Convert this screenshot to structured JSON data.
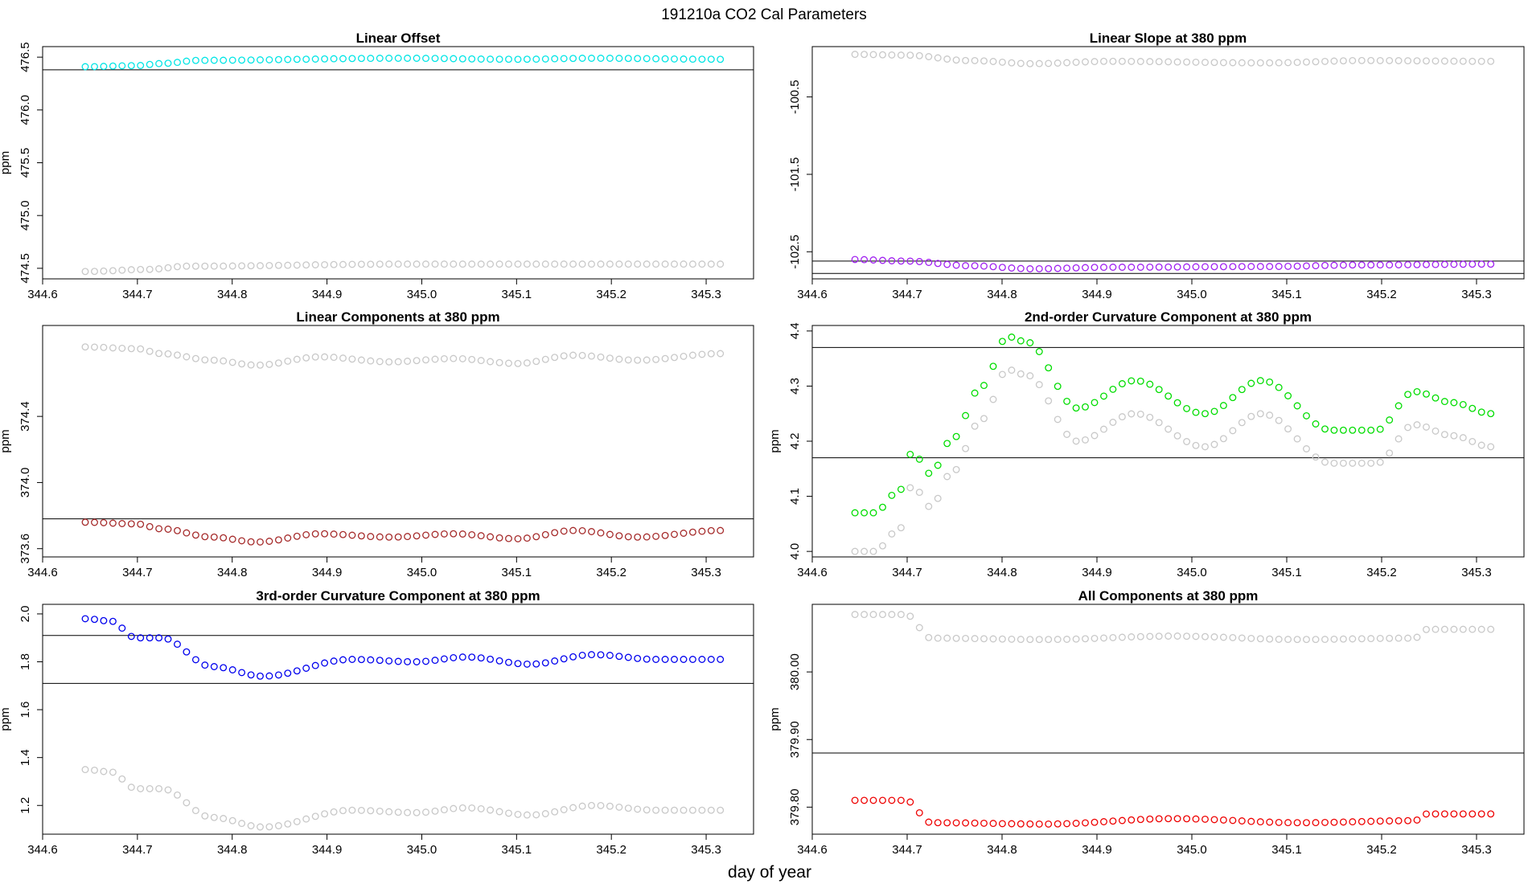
{
  "title": "191210a    CO2 Cal Parameters",
  "xlabel": "day of year",
  "chart_data": [
    {
      "type": "scatter",
      "title": "Linear Offset",
      "ylabel": "ppm",
      "xlim": [
        344.6,
        345.35
      ],
      "ylim": [
        474.4,
        476.6
      ],
      "xticks": [
        344.6,
        344.7,
        344.8,
        344.9,
        345.0,
        345.1,
        345.2,
        345.3
      ],
      "xtick_labels": [
        "344.6",
        "344.7",
        "344.8",
        "344.9",
        "345.0",
        "345.1",
        "345.2",
        "345.3"
      ],
      "yticks": [
        474.5,
        475.0,
        475.5,
        476.0,
        476.5
      ],
      "ytick_labels": [
        "474.5",
        "475.0",
        "475.5",
        "476.0",
        "476.5"
      ],
      "hlines": [
        476.38
      ],
      "series": [
        {
          "color": "#00e5e5",
          "x0": 344.645,
          "x1": 345.315,
          "keys": [
            [
              0,
              476.41
            ],
            [
              0.08,
              476.42
            ],
            [
              0.12,
              476.44
            ],
            [
              0.18,
              476.47
            ],
            [
              0.5,
              476.49
            ],
            [
              0.68,
              476.48
            ],
            [
              0.8,
              476.49
            ],
            [
              1,
              476.48
            ]
          ]
        },
        {
          "color": "#c8c8c8",
          "x0": 344.645,
          "x1": 345.315,
          "keys": [
            [
              0,
              474.47
            ],
            [
              0.1,
              474.49
            ],
            [
              0.16,
              474.52
            ],
            [
              0.5,
              474.54
            ],
            [
              1,
              474.54
            ]
          ]
        }
      ]
    },
    {
      "type": "scatter",
      "title": "Linear Slope at 380 ppm",
      "ylabel": "",
      "xlim": [
        344.6,
        345.35
      ],
      "ylim": [
        -102.85,
        -99.85
      ],
      "xticks": [
        344.6,
        344.7,
        344.8,
        344.9,
        345.0,
        345.1,
        345.2,
        345.3
      ],
      "xtick_labels": [
        "344.6",
        "344.7",
        "344.8",
        "344.9",
        "345.0",
        "345.1",
        "345.2",
        "345.3"
      ],
      "yticks": [
        -102.5,
        -101.5,
        -100.5
      ],
      "ytick_labels": [
        "-102.5",
        "-101.5",
        "-100.5"
      ],
      "hlines": [
        -102.62,
        -102.78
      ],
      "series": [
        {
          "color": "#c8c8c8",
          "x0": 344.645,
          "x1": 345.315,
          "keys": [
            [
              0,
              -99.95
            ],
            [
              0.08,
              -99.96
            ],
            [
              0.18,
              -100.03
            ],
            [
              0.28,
              -100.07
            ],
            [
              0.4,
              -100.04
            ],
            [
              0.65,
              -100.06
            ],
            [
              0.8,
              -100.03
            ],
            [
              1,
              -100.04
            ]
          ]
        },
        {
          "color": "#a020f0",
          "x0": 344.645,
          "x1": 345.315,
          "keys": [
            [
              0,
              -102.6
            ],
            [
              0.08,
              -102.62
            ],
            [
              0.18,
              -102.68
            ],
            [
              0.28,
              -102.72
            ],
            [
              0.4,
              -102.7
            ],
            [
              0.65,
              -102.69
            ],
            [
              0.8,
              -102.67
            ],
            [
              1,
              -102.66
            ]
          ]
        }
      ]
    },
    {
      "type": "scatter",
      "title": "Linear Components at 380 ppm",
      "ylabel": "ppm",
      "xlim": [
        344.6,
        345.35
      ],
      "ylim": [
        373.55,
        374.95
      ],
      "xticks": [
        344.6,
        344.7,
        344.8,
        344.9,
        345.0,
        345.1,
        345.2,
        345.3
      ],
      "xtick_labels": [
        "344.6",
        "344.7",
        "344.8",
        "344.9",
        "345.0",
        "345.1",
        "345.2",
        "345.3"
      ],
      "yticks": [
        373.6,
        374.0,
        374.4
      ],
      "ytick_labels": [
        "373.6",
        "374.0",
        "374.4"
      ],
      "hlines": [
        373.78
      ],
      "series": [
        {
          "color": "#c8c8c8",
          "x0": 344.645,
          "x1": 345.315,
          "keys": [
            [
              0,
              374.82
            ],
            [
              0.08,
              374.81
            ],
            [
              0.12,
              374.78
            ],
            [
              0.2,
              374.74
            ],
            [
              0.27,
              374.71
            ],
            [
              0.37,
              374.76
            ],
            [
              0.48,
              374.73
            ],
            [
              0.58,
              374.75
            ],
            [
              0.68,
              374.72
            ],
            [
              0.77,
              374.77
            ],
            [
              0.87,
              374.74
            ],
            [
              1,
              374.78
            ]
          ]
        },
        {
          "color": "#a52a2a",
          "x0": 344.645,
          "x1": 345.315,
          "keys": [
            [
              0,
              373.76
            ],
            [
              0.08,
              373.75
            ],
            [
              0.12,
              373.72
            ],
            [
              0.2,
              373.67
            ],
            [
              0.27,
              373.64
            ],
            [
              0.37,
              373.69
            ],
            [
              0.48,
              373.67
            ],
            [
              0.58,
              373.69
            ],
            [
              0.68,
              373.66
            ],
            [
              0.77,
              373.71
            ],
            [
              0.87,
              373.67
            ],
            [
              1,
              373.71
            ]
          ]
        }
      ]
    },
    {
      "type": "scatter",
      "title": "2nd-order Curvature Component at 380 ppm",
      "ylabel": "ppm",
      "xlim": [
        344.6,
        345.35
      ],
      "ylim": [
        3.99,
        4.41
      ],
      "xticks": [
        344.6,
        344.7,
        344.8,
        344.9,
        345.0,
        345.1,
        345.2,
        345.3
      ],
      "xtick_labels": [
        "344.6",
        "344.7",
        "344.8",
        "344.9",
        "345.0",
        "345.1",
        "345.2",
        "345.3"
      ],
      "yticks": [
        4.0,
        4.1,
        4.2,
        4.3,
        4.4
      ],
      "ytick_labels": [
        "4.0",
        "4.1",
        "4.2",
        "4.3",
        "4.4"
      ],
      "hlines": [
        4.37,
        4.17
      ],
      "series": [
        {
          "color": "#00dd00",
          "x0": 344.645,
          "x1": 345.315,
          "keys": [
            [
              0,
              4.07
            ],
            [
              0.03,
              4.07
            ],
            [
              0.07,
              4.11
            ],
            [
              0.09,
              4.18
            ],
            [
              0.12,
              4.14
            ],
            [
              0.15,
              4.2
            ],
            [
              0.2,
              4.3
            ],
            [
              0.24,
              4.39
            ],
            [
              0.27,
              4.38
            ],
            [
              0.35,
              4.26
            ],
            [
              0.44,
              4.31
            ],
            [
              0.55,
              4.25
            ],
            [
              0.64,
              4.31
            ],
            [
              0.75,
              4.22
            ],
            [
              0.82,
              4.22
            ],
            [
              0.88,
              4.29
            ],
            [
              0.94,
              4.27
            ],
            [
              1,
              4.25
            ]
          ]
        },
        {
          "color": "#c8c8c8",
          "x0": 344.645,
          "x1": 345.315,
          "keys": [
            [
              0,
              4.0
            ],
            [
              0.03,
              4.0
            ],
            [
              0.07,
              4.04
            ],
            [
              0.09,
              4.12
            ],
            [
              0.12,
              4.08
            ],
            [
              0.15,
              4.14
            ],
            [
              0.2,
              4.24
            ],
            [
              0.24,
              4.33
            ],
            [
              0.27,
              4.32
            ],
            [
              0.35,
              4.2
            ],
            [
              0.44,
              4.25
            ],
            [
              0.55,
              4.19
            ],
            [
              0.64,
              4.25
            ],
            [
              0.75,
              4.16
            ],
            [
              0.82,
              4.16
            ],
            [
              0.88,
              4.23
            ],
            [
              0.94,
              4.21
            ],
            [
              1,
              4.19
            ]
          ]
        }
      ]
    },
    {
      "type": "scatter",
      "title": "3rd-order Curvature Component at 380 ppm",
      "ylabel": "ppm",
      "xlim": [
        344.6,
        345.35
      ],
      "ylim": [
        1.08,
        2.04
      ],
      "xticks": [
        344.6,
        344.7,
        344.8,
        344.9,
        345.0,
        345.1,
        345.2,
        345.3
      ],
      "xtick_labels": [
        "344.6",
        "344.7",
        "344.8",
        "344.9",
        "345.0",
        "345.1",
        "345.2",
        "345.3"
      ],
      "yticks": [
        1.2,
        1.4,
        1.6,
        1.8,
        2.0
      ],
      "ytick_labels": [
        "1.2",
        "1.4",
        "1.6",
        "1.8",
        "2.0"
      ],
      "hlines": [
        1.91,
        1.71
      ],
      "series": [
        {
          "color": "#0000ee",
          "x0": 344.645,
          "x1": 345.315,
          "keys": [
            [
              0,
              1.98
            ],
            [
              0.04,
              1.97
            ],
            [
              0.08,
              1.9
            ],
            [
              0.12,
              1.9
            ],
            [
              0.2,
              1.78
            ],
            [
              0.28,
              1.74
            ],
            [
              0.42,
              1.81
            ],
            [
              0.52,
              1.8
            ],
            [
              0.6,
              1.82
            ],
            [
              0.7,
              1.79
            ],
            [
              0.8,
              1.83
            ],
            [
              0.9,
              1.81
            ],
            [
              1,
              1.81
            ]
          ]
        },
        {
          "color": "#c8c8c8",
          "x0": 344.645,
          "x1": 345.315,
          "keys": [
            [
              0,
              1.35
            ],
            [
              0.04,
              1.34
            ],
            [
              0.08,
              1.27
            ],
            [
              0.12,
              1.27
            ],
            [
              0.2,
              1.15
            ],
            [
              0.28,
              1.11
            ],
            [
              0.42,
              1.18
            ],
            [
              0.52,
              1.17
            ],
            [
              0.6,
              1.19
            ],
            [
              0.7,
              1.16
            ],
            [
              0.8,
              1.2
            ],
            [
              0.9,
              1.18
            ],
            [
              1,
              1.18
            ]
          ]
        }
      ]
    },
    {
      "type": "scatter",
      "title": "All Components at 380 ppm",
      "ylabel": "ppm",
      "xlim": [
        344.6,
        345.35
      ],
      "ylim": [
        379.76,
        380.1
      ],
      "xticks": [
        344.6,
        344.7,
        344.8,
        344.9,
        345.0,
        345.1,
        345.2,
        345.3
      ],
      "xtick_labels": [
        "344.6",
        "344.7",
        "344.8",
        "344.9",
        "345.0",
        "345.1",
        "345.2",
        "345.3"
      ],
      "yticks": [
        379.8,
        379.9,
        380.0
      ],
      "ytick_labels": [
        "379.80",
        "379.90",
        "380.00"
      ],
      "hlines": [
        379.88
      ],
      "series": [
        {
          "color": "#c8c8c8",
          "x0": 344.645,
          "x1": 345.315,
          "keys": [
            [
              0,
              380.085
            ],
            [
              0.08,
              380.085
            ],
            [
              0.12,
              380.05
            ],
            [
              0.3,
              380.048
            ],
            [
              0.5,
              380.053
            ],
            [
              0.7,
              380.048
            ],
            [
              0.88,
              380.05
            ],
            [
              0.9,
              380.063
            ],
            [
              1,
              380.063
            ]
          ]
        },
        {
          "color": "#ee0000",
          "x0": 344.645,
          "x1": 345.315,
          "keys": [
            [
              0,
              379.81
            ],
            [
              0.08,
              379.81
            ],
            [
              0.12,
              379.777
            ],
            [
              0.3,
              379.775
            ],
            [
              0.5,
              379.783
            ],
            [
              0.7,
              379.777
            ],
            [
              0.88,
              379.78
            ],
            [
              0.9,
              379.79
            ],
            [
              1,
              379.79
            ]
          ]
        }
      ]
    }
  ]
}
